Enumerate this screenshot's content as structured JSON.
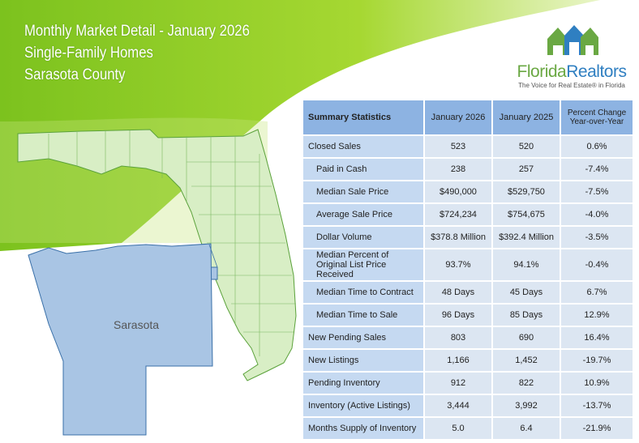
{
  "header": {
    "title_line1": "Monthly Market Detail - January 2026",
    "title_line2": "Single-Family Homes",
    "title_line3": "Sarasota County"
  },
  "logo": {
    "brand_part1": "Florida",
    "brand_part2": "Realtors",
    "tagline": "The Voice for Real Estate® in Florida"
  },
  "map": {
    "county_label": "Sarasota",
    "state_color": "#d8eec5",
    "county_color": "#a9c5e4"
  },
  "table": {
    "headers": [
      "Summary Statistics",
      "January 2026",
      "January 2025",
      "Percent Change Year-over-Year"
    ],
    "rows": [
      {
        "label": "Closed Sales",
        "v2026": "523",
        "v2025": "520",
        "change": "0.6%"
      },
      {
        "label": "Paid in Cash",
        "v2026": "238",
        "v2025": "257",
        "change": "-7.4%"
      },
      {
        "label": "Median Sale Price",
        "v2026": "$490,000",
        "v2025": "$529,750",
        "change": "-7.5%"
      },
      {
        "label": "Average Sale Price",
        "v2026": "$724,234",
        "v2025": "$754,675",
        "change": "-4.0%"
      },
      {
        "label": "Dollar Volume",
        "v2026": "$378.8 Million",
        "v2025": "$392.4 Million",
        "change": "-3.5%"
      },
      {
        "label": "Median Percent of Original List Price Received",
        "v2026": "93.7%",
        "v2025": "94.1%",
        "change": "-0.4%"
      },
      {
        "label": "Median Time to Contract",
        "v2026": "48 Days",
        "v2025": "45 Days",
        "change": "6.7%"
      },
      {
        "label": "Median Time to Sale",
        "v2026": "96 Days",
        "v2025": "85 Days",
        "change": "12.9%"
      },
      {
        "label": "New Pending Sales",
        "v2026": "803",
        "v2025": "690",
        "change": "16.4%"
      },
      {
        "label": "New Listings",
        "v2026": "1,166",
        "v2025": "1,452",
        "change": "-19.7%"
      },
      {
        "label": "Pending Inventory",
        "v2026": "912",
        "v2025": "822",
        "change": "10.9%"
      },
      {
        "label": "Inventory (Active Listings)",
        "v2026": "3,444",
        "v2025": "3,992",
        "change": "-13.7%"
      },
      {
        "label": "Months Supply of Inventory",
        "v2026": "5.0",
        "v2025": "6.4",
        "change": "-21.9%"
      }
    ]
  }
}
